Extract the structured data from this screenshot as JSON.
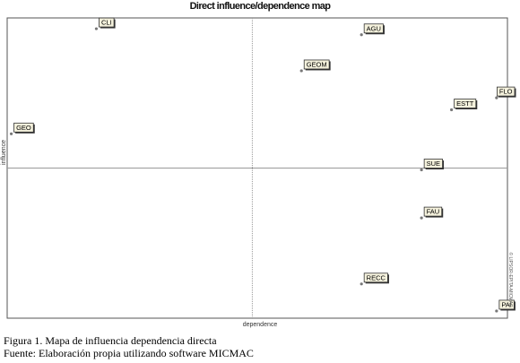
{
  "chart_data": {
    "type": "scatter",
    "title": "Direct influence/dependence map",
    "xlabel": "dependence",
    "ylabel": "influence",
    "watermark": "© LIPSOR-EPITA-MICMAC",
    "grid": false,
    "xlim": [
      0,
      100
    ],
    "ylim": [
      0,
      100
    ],
    "axis_center": {
      "x": 49,
      "y": 50
    },
    "points": [
      {
        "label": "CLI",
        "x": 18,
        "y": 97
      },
      {
        "label": "AGU",
        "x": 71,
        "y": 95
      },
      {
        "label": "GEOM",
        "x": 59,
        "y": 83
      },
      {
        "label": "FLO",
        "x": 98,
        "y": 74
      },
      {
        "label": "ESTT",
        "x": 89,
        "y": 70
      },
      {
        "label": "GEO",
        "x": 1,
        "y": 62
      },
      {
        "label": "SUE",
        "x": 83,
        "y": 50
      },
      {
        "label": "FAU",
        "x": 83,
        "y": 34
      },
      {
        "label": "RECC",
        "x": 71,
        "y": 12
      },
      {
        "label": "PAI",
        "x": 98,
        "y": 3
      }
    ]
  },
  "caption": {
    "figure": "Figura 1. Mapa de influencia dependencia directa",
    "source": "Fuente: Elaboración propia utilizando software MICMAC"
  }
}
